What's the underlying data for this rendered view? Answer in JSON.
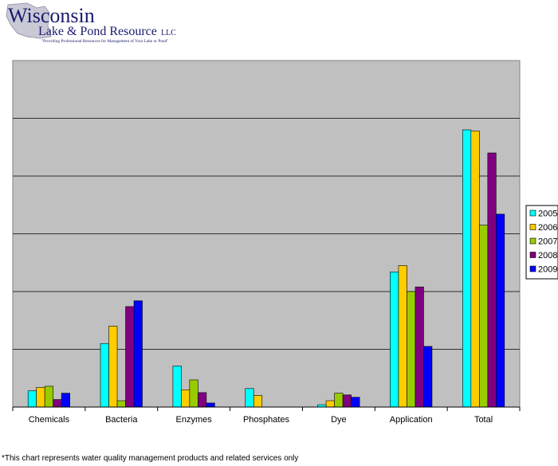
{
  "logo": {
    "line1": "Wisconsin",
    "line2": "Lake & Pond Resource",
    "suffix": "LLC",
    "tagline": "\"Providing Professional Resources for Management of Your Lake or Pond\"",
    "colors": {
      "text": "#1a1a6e",
      "map": "#c9c9d6"
    }
  },
  "chart_data": {
    "type": "bar",
    "categories": [
      "Chemicals",
      "Bacteria",
      "Enzymes",
      "Phosphates",
      "Dye",
      "Application",
      "Total"
    ],
    "series": [
      {
        "name": "2005",
        "color": "#00ffff",
        "values": [
          2.8,
          11.0,
          7.1,
          3.2,
          0.4,
          23.4,
          48.0
        ]
      },
      {
        "name": "2006",
        "color": "#ffcc00",
        "values": [
          3.4,
          14.0,
          3.0,
          2.0,
          1.1,
          24.5,
          47.8
        ]
      },
      {
        "name": "2007",
        "color": "#99cc00",
        "values": [
          3.6,
          1.1,
          4.7,
          0,
          2.4,
          20.0,
          31.5
        ]
      },
      {
        "name": "2008",
        "color": "#800080",
        "values": [
          1.3,
          17.4,
          2.5,
          0,
          2.1,
          20.8,
          44.0
        ]
      },
      {
        "name": "2009",
        "color": "#0000ff",
        "values": [
          2.4,
          18.4,
          0.7,
          0,
          1.7,
          10.5,
          33.4
        ]
      }
    ],
    "ylim": [
      0,
      60
    ],
    "ytick_step": 10,
    "grid": true,
    "legend": "right",
    "plot_background": "#c0c0c0"
  },
  "footnote": "*This chart represents water quality management products and related services only"
}
